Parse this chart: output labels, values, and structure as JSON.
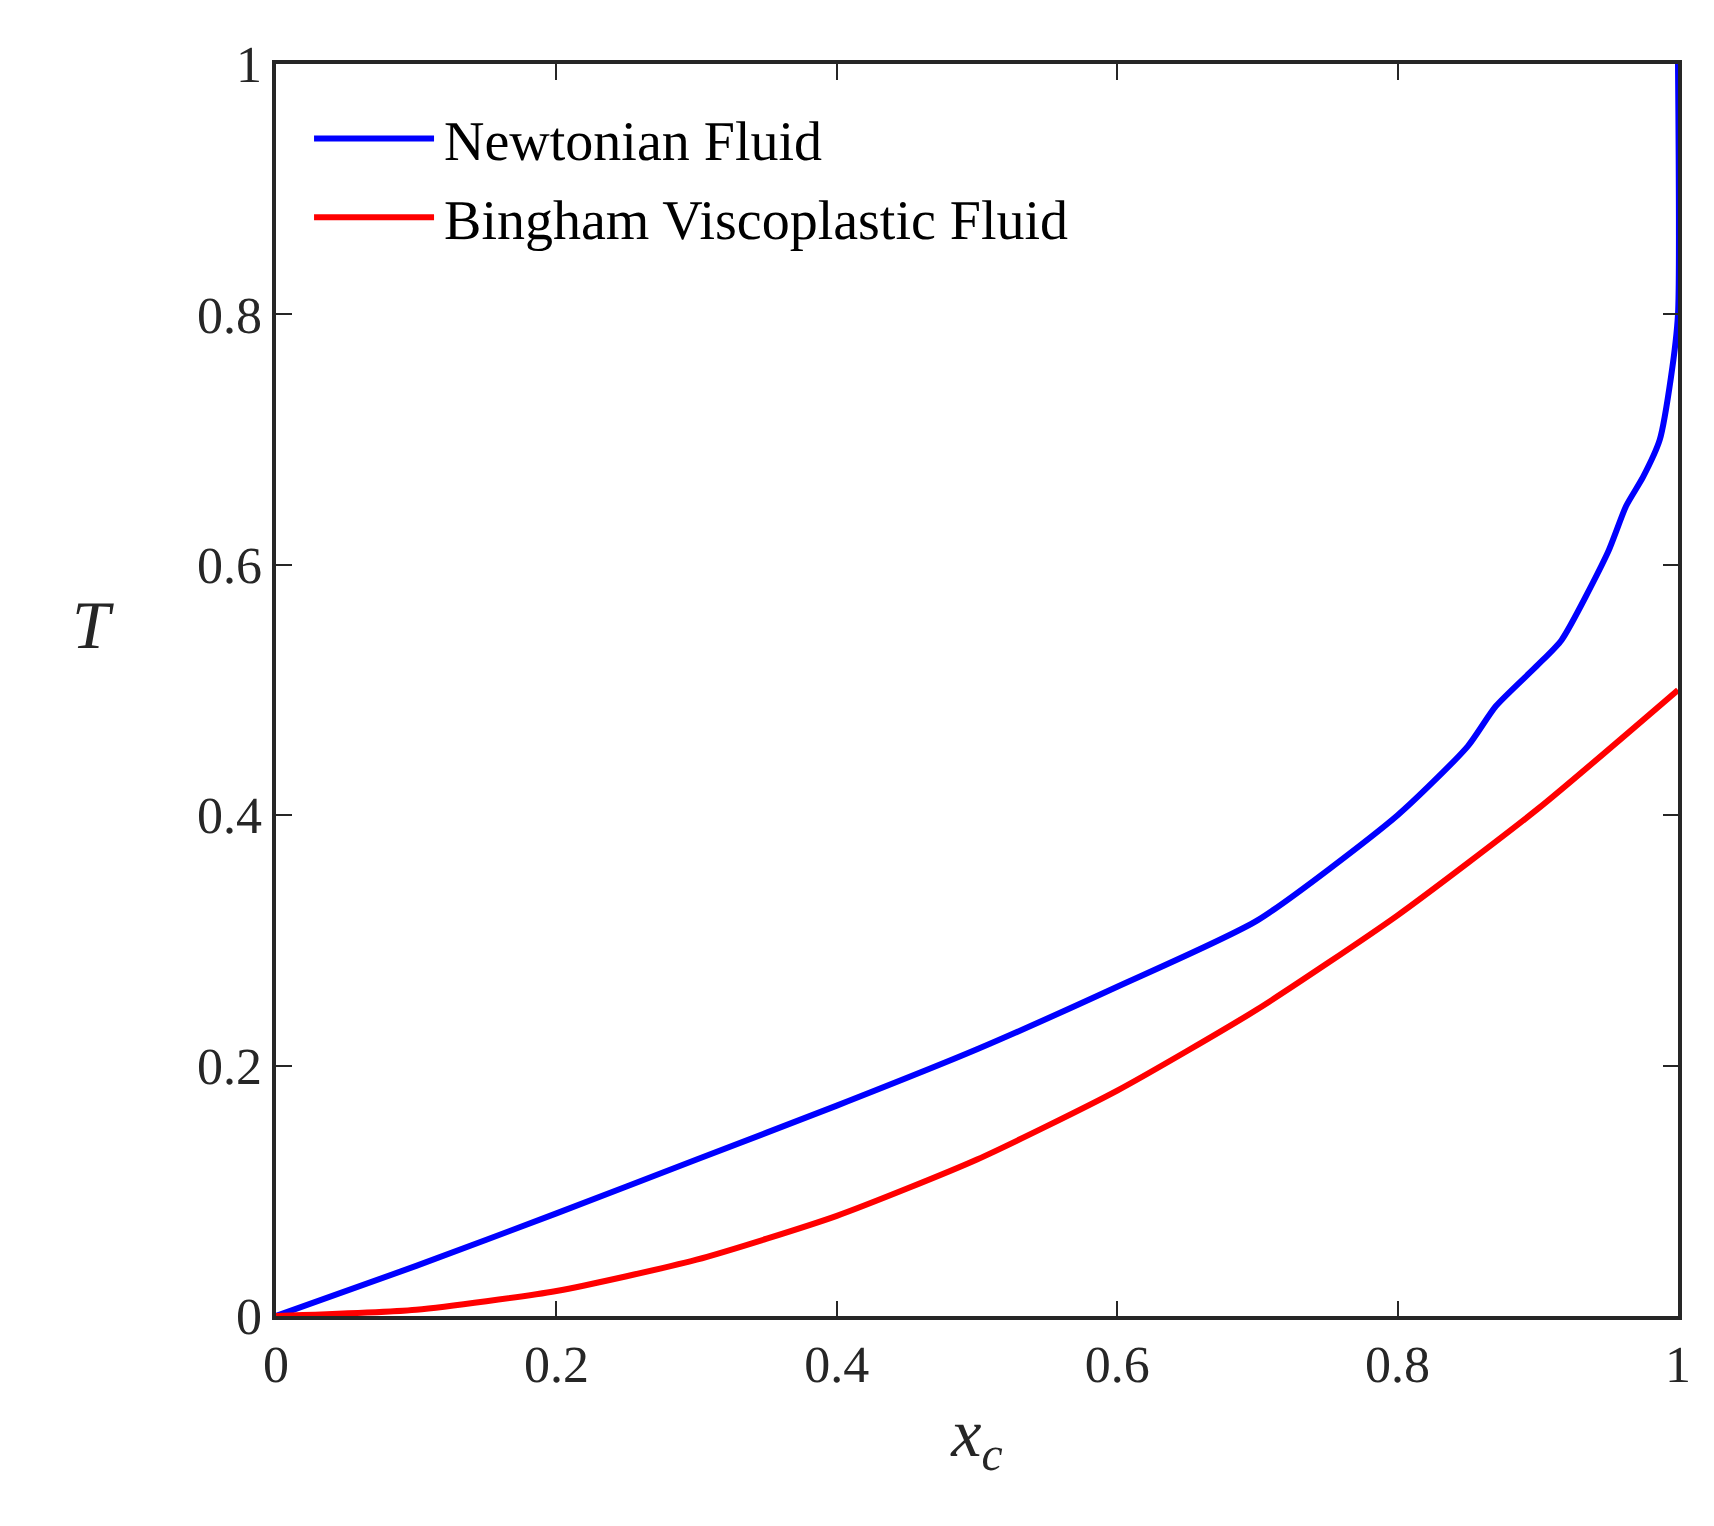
{
  "chart_data": {
    "type": "line",
    "xlabel": "x$_{c}$",
    "ylabel": "T",
    "xlim": [
      0,
      1
    ],
    "ylim": [
      0,
      1
    ],
    "xticks": [
      0,
      0.2,
      0.4,
      0.6,
      0.8,
      1
    ],
    "yticks": [
      0,
      0.2,
      0.4,
      0.6,
      0.8,
      1
    ],
    "legend": "top left",
    "line_style": "solid",
    "marker": "none",
    "series": [
      {
        "name": "Newtonian Fluid",
        "color": "#0000ff",
        "x": [
          0,
          0.1,
          0.2,
          0.3,
          0.4,
          0.5,
          0.6,
          0.7,
          0.8,
          0.85,
          0.87,
          0.9,
          0.917,
          0.95,
          0.963,
          0.975,
          0.987,
          0.995,
          1,
          1
        ],
        "values": [
          0,
          0.04,
          0.082,
          0.125,
          0.168,
          0.213,
          0.263,
          0.316,
          0.4,
          0.455,
          0.487,
          0.52,
          0.54,
          0.61,
          0.647,
          0.67,
          0.7,
          0.75,
          0.8,
          1
        ]
      },
      {
        "name": "Bingham Viscoplastic Fluid",
        "color": "#ff0000",
        "x": [
          0,
          0.1,
          0.2,
          0.3,
          0.4,
          0.5,
          0.6,
          0.7,
          0.8,
          0.9,
          1
        ],
        "values": [
          0,
          0.005,
          0.02,
          0.045,
          0.08,
          0.125,
          0.18,
          0.245,
          0.32,
          0.405,
          0.5
        ]
      }
    ]
  }
}
